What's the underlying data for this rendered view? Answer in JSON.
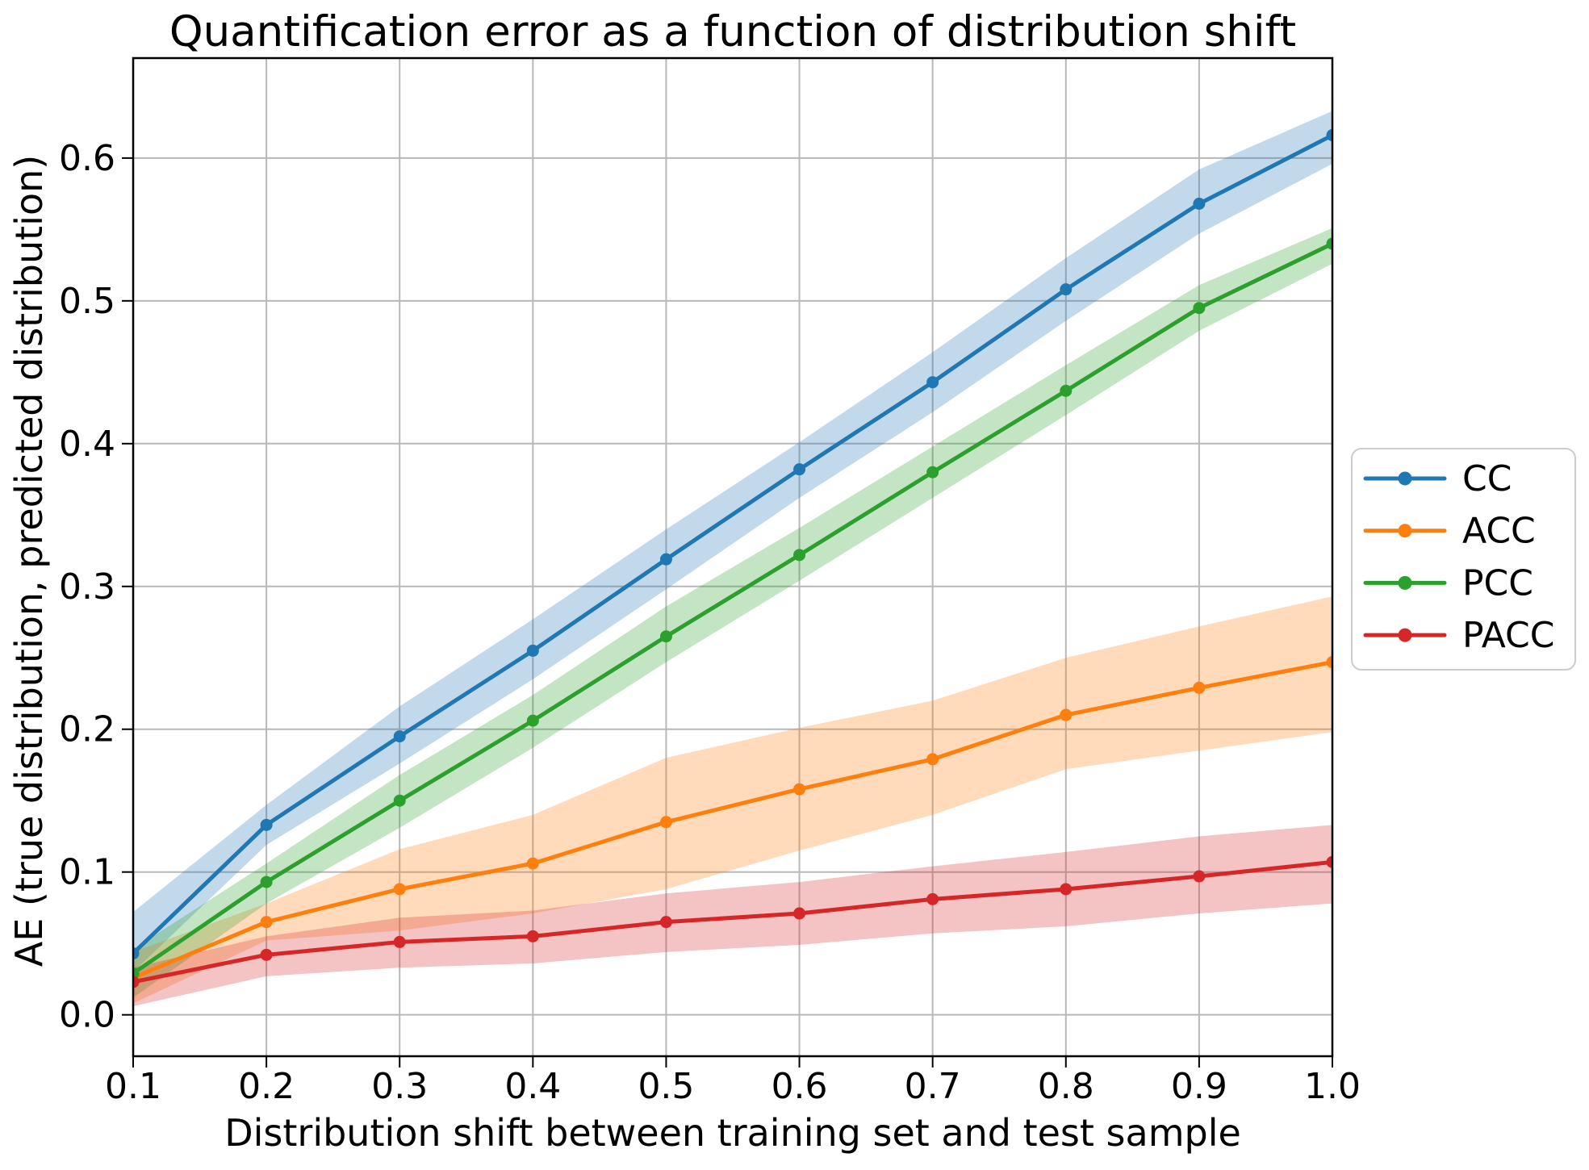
{
  "chart_data": {
    "type": "line",
    "title": "Quantification error as a function of distribution shift",
    "xlabel": "Distribution shift between training set and test sample",
    "ylabel": "AE (true distribution, predicted distribution)",
    "grid": true,
    "legend_position": "right-outside",
    "xlim": [
      0.1,
      1.0
    ],
    "ylim": [
      -0.029,
      0.67
    ],
    "x": [
      0.1,
      0.2,
      0.3,
      0.4,
      0.5,
      0.6,
      0.7,
      0.8,
      0.9,
      1.0
    ],
    "x_tick_labels": [
      "0.1",
      "0.2",
      "0.3",
      "0.4",
      "0.5",
      "0.6",
      "0.7",
      "0.8",
      "0.9",
      "1.0"
    ],
    "y_ticks": [
      0.0,
      0.1,
      0.2,
      0.3,
      0.4,
      0.5,
      0.6
    ],
    "y_tick_labels": [
      "0.0",
      "0.1",
      "0.2",
      "0.3",
      "0.4",
      "0.5",
      "0.6"
    ],
    "band_opacity": 0.28,
    "series": [
      {
        "name": "CC",
        "color": "#1f77b4",
        "values": [
          0.043,
          0.133,
          0.195,
          0.255,
          0.319,
          0.382,
          0.443,
          0.508,
          0.568,
          0.616
        ],
        "band_lower": [
          0.03,
          0.119,
          0.176,
          0.235,
          0.298,
          0.362,
          0.422,
          0.486,
          0.547,
          0.596
        ],
        "band_upper": [
          0.072,
          0.147,
          0.216,
          0.277,
          0.34,
          0.401,
          0.464,
          0.53,
          0.592,
          0.633
        ]
      },
      {
        "name": "ACC",
        "color": "#ff7f0e",
        "values": [
          0.026,
          0.065,
          0.088,
          0.106,
          0.135,
          0.158,
          0.179,
          0.21,
          0.229,
          0.247
        ],
        "band_lower": [
          0.008,
          0.052,
          0.059,
          0.071,
          0.088,
          0.115,
          0.14,
          0.172,
          0.185,
          0.198
        ],
        "band_upper": [
          0.044,
          0.078,
          0.116,
          0.14,
          0.18,
          0.201,
          0.22,
          0.25,
          0.272,
          0.293
        ]
      },
      {
        "name": "PCC",
        "color": "#2ca02c",
        "values": [
          0.029,
          0.093,
          0.15,
          0.206,
          0.265,
          0.322,
          0.38,
          0.437,
          0.495,
          0.54
        ],
        "band_lower": [
          0.012,
          0.078,
          0.131,
          0.187,
          0.247,
          0.304,
          0.362,
          0.42,
          0.479,
          0.526
        ],
        "band_upper": [
          0.046,
          0.106,
          0.168,
          0.224,
          0.286,
          0.341,
          0.398,
          0.455,
          0.511,
          0.551
        ]
      },
      {
        "name": "PACC",
        "color": "#d62728",
        "values": [
          0.023,
          0.042,
          0.051,
          0.055,
          0.065,
          0.071,
          0.081,
          0.088,
          0.097,
          0.107
        ],
        "band_lower": [
          0.006,
          0.027,
          0.033,
          0.036,
          0.044,
          0.049,
          0.057,
          0.062,
          0.071,
          0.078
        ],
        "band_upper": [
          0.033,
          0.055,
          0.068,
          0.073,
          0.085,
          0.093,
          0.104,
          0.114,
          0.125,
          0.133
        ]
      }
    ]
  },
  "legend": {
    "entries": [
      "CC",
      "ACC",
      "PCC",
      "PACC"
    ]
  },
  "colors": {
    "background": "#ffffff",
    "gridline": "#b8b8b8",
    "spine": "#000000",
    "legend_border": "#cccccc"
  }
}
